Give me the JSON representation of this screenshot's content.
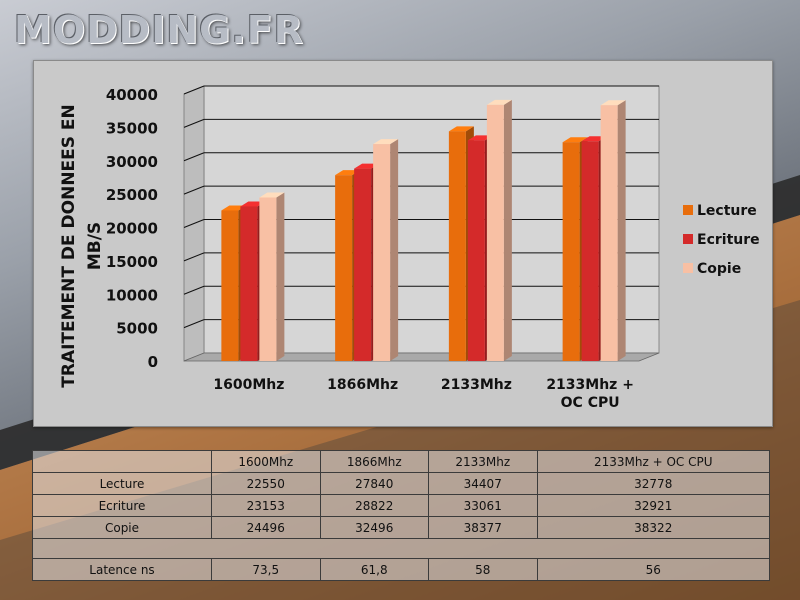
{
  "site": {
    "logo_text": "MODDING.FR"
  },
  "chart_data": {
    "type": "bar",
    "title": "",
    "ylabel_line1": "TRAITEMENT DE DONNEES EN",
    "ylabel_line2": "MB/S",
    "xlabel": "",
    "categories": [
      "1600Mhz",
      "1866Mhz",
      "2133Mhz",
      "2133Mhz +\nOC CPU"
    ],
    "ylim": [
      0,
      40000
    ],
    "yticks": [
      0,
      5000,
      10000,
      15000,
      20000,
      25000,
      30000,
      35000,
      40000
    ],
    "series": [
      {
        "name": "Lecture",
        "color": "#e86d0c",
        "values": [
          22550,
          27840,
          34407,
          32778
        ]
      },
      {
        "name": "Ecriture",
        "color": "#d42a2a",
        "values": [
          23153,
          28822,
          33061,
          32921
        ]
      },
      {
        "name": "Copie",
        "color": "#f8c0a4",
        "values": [
          24496,
          32496,
          38377,
          38322
        ]
      }
    ],
    "legend_position": "right"
  },
  "table": {
    "headers": [
      "",
      "1600Mhz",
      "1866Mhz",
      "2133Mhz",
      "2133Mhz + OC CPU"
    ],
    "rows": [
      [
        "Lecture",
        "22550",
        "27840",
        "34407",
        "32778"
      ],
      [
        "Ecriture",
        "23153",
        "28822",
        "33061",
        "32921"
      ],
      [
        "Copie",
        "24496",
        "32496",
        "38377",
        "38322"
      ]
    ],
    "latency": [
      "Latence ns",
      "73,5",
      "61,8",
      "58",
      "56"
    ]
  }
}
